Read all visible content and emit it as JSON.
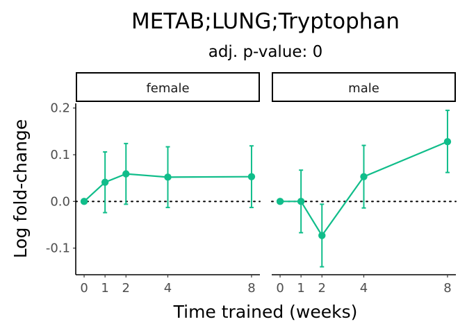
{
  "chart_data": {
    "type": "line",
    "title": "METAB;LUNG;Tryptophan",
    "subtitle": "adj. p-value: 0",
    "xlabel": "Time trained (weeks)",
    "ylabel": "Log fold-change",
    "x_ticks": [
      0,
      1,
      2,
      4,
      8
    ],
    "y_ticks": [
      0.2,
      0.1,
      0.0,
      -0.1
    ],
    "y_tick_labels": [
      "0.2",
      "0.1",
      "0.0",
      "-0.1"
    ],
    "xlim": [
      -0.4,
      8.4
    ],
    "ylim": [
      -0.157,
      0.21
    ],
    "reference_line": {
      "y": 0,
      "style": "dotted"
    },
    "grid": false,
    "color": "#10bd8a",
    "panels": [
      {
        "label": "female",
        "points": [
          {
            "x": 0,
            "y": 0.0,
            "lower": null,
            "upper": null
          },
          {
            "x": 1,
            "y": 0.041,
            "lower": -0.024,
            "upper": 0.106
          },
          {
            "x": 2,
            "y": 0.059,
            "lower": -0.006,
            "upper": 0.124
          },
          {
            "x": 4,
            "y": 0.052,
            "lower": -0.013,
            "upper": 0.117
          },
          {
            "x": 8,
            "y": 0.053,
            "lower": -0.013,
            "upper": 0.119
          }
        ]
      },
      {
        "label": "male",
        "points": [
          {
            "x": 0,
            "y": 0.0,
            "lower": null,
            "upper": null
          },
          {
            "x": 1,
            "y": 0.0,
            "lower": -0.067,
            "upper": 0.067
          },
          {
            "x": 2,
            "y": -0.073,
            "lower": -0.14,
            "upper": -0.006
          },
          {
            "x": 4,
            "y": 0.053,
            "lower": -0.014,
            "upper": 0.12
          },
          {
            "x": 8,
            "y": 0.128,
            "lower": 0.062,
            "upper": 0.195
          }
        ]
      }
    ]
  }
}
